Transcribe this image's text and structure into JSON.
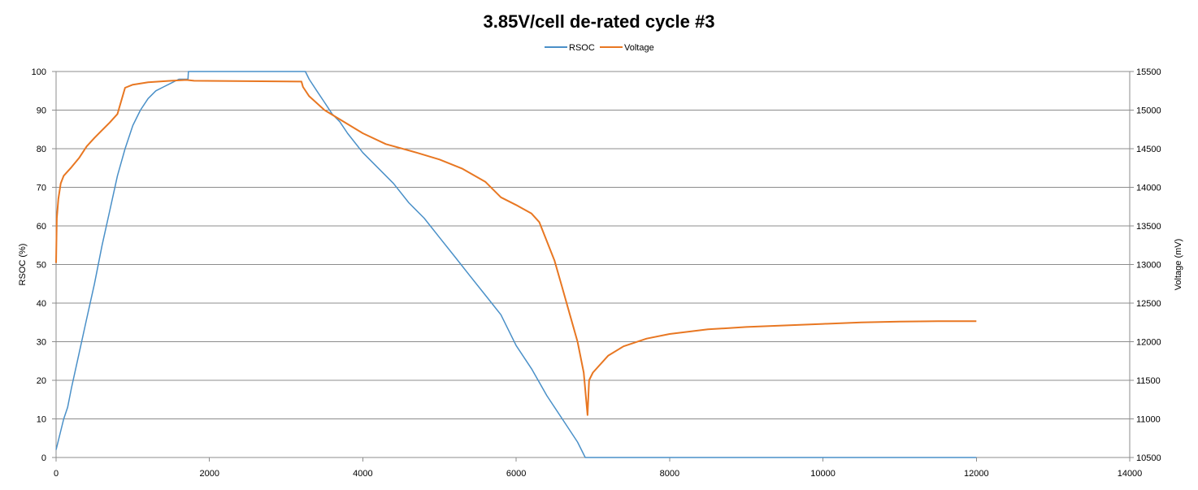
{
  "chart_data": {
    "type": "line",
    "title": "3.85V/cell de-rated cycle #3",
    "xlabel": "",
    "y1label": "RSOC (%)",
    "y2label": "Voltage (mV)",
    "xlim": [
      0,
      14000
    ],
    "y1lim": [
      0,
      100
    ],
    "y2lim": [
      10500,
      15500
    ],
    "xticks": [
      0,
      2000,
      4000,
      6000,
      8000,
      10000,
      12000,
      14000
    ],
    "y1ticks": [
      0,
      10,
      20,
      30,
      40,
      50,
      60,
      70,
      80,
      90,
      100
    ],
    "y2ticks": [
      10500,
      11000,
      11500,
      12000,
      12500,
      13000,
      13500,
      14000,
      14500,
      15000,
      15500
    ],
    "grid": true,
    "legend_position": "top-center",
    "series": [
      {
        "name": "RSOC",
        "axis": "left",
        "color": "#4a90c8",
        "points": [
          [
            0,
            2
          ],
          [
            50,
            6
          ],
          [
            100,
            10
          ],
          [
            150,
            13
          ],
          [
            200,
            18
          ],
          [
            300,
            27
          ],
          [
            400,
            36
          ],
          [
            500,
            45
          ],
          [
            600,
            55
          ],
          [
            700,
            64
          ],
          [
            800,
            73
          ],
          [
            900,
            80
          ],
          [
            1000,
            86
          ],
          [
            1100,
            90
          ],
          [
            1200,
            93
          ],
          [
            1300,
            95
          ],
          [
            1400,
            96
          ],
          [
            1500,
            97
          ],
          [
            1600,
            98
          ],
          [
            1700,
            98
          ],
          [
            1720,
            98
          ],
          [
            1725,
            100
          ],
          [
            1730,
            100
          ],
          [
            3250,
            100
          ],
          [
            3300,
            98
          ],
          [
            3400,
            95
          ],
          [
            3500,
            92
          ],
          [
            3600,
            89
          ],
          [
            3700,
            87
          ],
          [
            3800,
            84
          ],
          [
            4000,
            79
          ],
          [
            4200,
            75
          ],
          [
            4400,
            71
          ],
          [
            4600,
            66
          ],
          [
            4800,
            62
          ],
          [
            5000,
            57
          ],
          [
            5200,
            52
          ],
          [
            5400,
            47
          ],
          [
            5600,
            42
          ],
          [
            5800,
            37
          ],
          [
            6000,
            29
          ],
          [
            6200,
            23
          ],
          [
            6400,
            16
          ],
          [
            6600,
            10
          ],
          [
            6800,
            4
          ],
          [
            6900,
            0
          ],
          [
            12000,
            0
          ]
        ]
      },
      {
        "name": "Voltage",
        "axis": "right",
        "color": "#e87722",
        "points": [
          [
            0,
            13020
          ],
          [
            10,
            13600
          ],
          [
            30,
            13850
          ],
          [
            60,
            14050
          ],
          [
            100,
            14150
          ],
          [
            200,
            14260
          ],
          [
            300,
            14380
          ],
          [
            400,
            14530
          ],
          [
            500,
            14640
          ],
          [
            600,
            14740
          ],
          [
            700,
            14840
          ],
          [
            800,
            14950
          ],
          [
            900,
            15290
          ],
          [
            1000,
            15330
          ],
          [
            1200,
            15360
          ],
          [
            1500,
            15380
          ],
          [
            1700,
            15390
          ],
          [
            1800,
            15380
          ],
          [
            2500,
            15375
          ],
          [
            3200,
            15370
          ],
          [
            3220,
            15300
          ],
          [
            3300,
            15180
          ],
          [
            3500,
            15000
          ],
          [
            3800,
            14820
          ],
          [
            4000,
            14700
          ],
          [
            4300,
            14560
          ],
          [
            4700,
            14450
          ],
          [
            5000,
            14360
          ],
          [
            5300,
            14240
          ],
          [
            5600,
            14070
          ],
          [
            5800,
            13870
          ],
          [
            6000,
            13770
          ],
          [
            6200,
            13660
          ],
          [
            6300,
            13550
          ],
          [
            6400,
            13300
          ],
          [
            6500,
            13050
          ],
          [
            6600,
            12700
          ],
          [
            6700,
            12350
          ],
          [
            6800,
            12000
          ],
          [
            6880,
            11600
          ],
          [
            6930,
            11050
          ],
          [
            6950,
            11500
          ],
          [
            7000,
            11600
          ],
          [
            7200,
            11820
          ],
          [
            7400,
            11940
          ],
          [
            7700,
            12040
          ],
          [
            8000,
            12100
          ],
          [
            8500,
            12160
          ],
          [
            9000,
            12190
          ],
          [
            9500,
            12210
          ],
          [
            10000,
            12230
          ],
          [
            10500,
            12250
          ],
          [
            11000,
            12260
          ],
          [
            11500,
            12265
          ],
          [
            12000,
            12265
          ]
        ]
      }
    ]
  }
}
